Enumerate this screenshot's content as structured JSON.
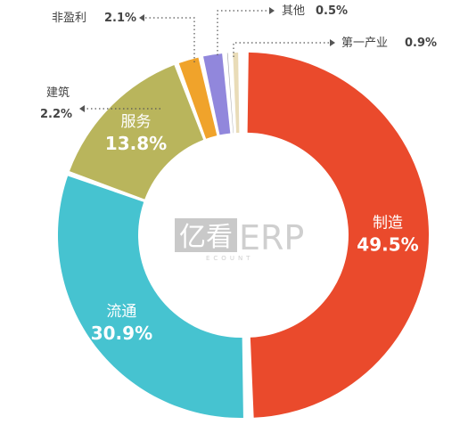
{
  "chart_data": {
    "type": "pie",
    "style": "donut",
    "categories": [
      "制造",
      "流通",
      "服务",
      "建筑",
      "非盈利",
      "其他",
      "第一产业"
    ],
    "values": [
      49.5,
      30.9,
      13.8,
      2.2,
      2.1,
      0.5,
      0.9
    ],
    "value_labels": [
      "49.5%",
      "30.9%",
      "13.8%",
      "2.2%",
      "2.1%",
      "0.5%",
      "0.9%"
    ],
    "colors": [
      "#ea4a2c",
      "#46c3d0",
      "#b9b55c",
      "#f0a32b",
      "#9187dc",
      "#a9a9ab",
      "#e9dcb8"
    ],
    "label_placement": [
      "inside",
      "inside",
      "inside",
      "outside-left",
      "outside-left",
      "outside-right",
      "outside-right"
    ],
    "title": "",
    "legend": "none"
  },
  "watermark": {
    "brand_cn": "亿看",
    "brand_en": "ERP",
    "sub": "ECOUNT"
  }
}
